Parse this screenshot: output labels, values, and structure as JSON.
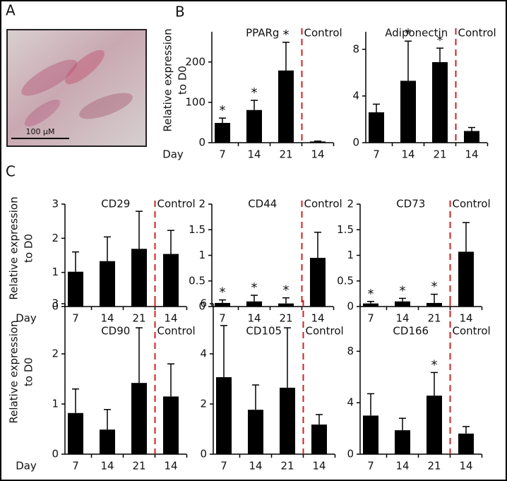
{
  "panel_labels": [
    "A",
    "B",
    "C"
  ],
  "image": {
    "scale_bar_label": "100 μM"
  },
  "chart_data": [
    {
      "type": "bar",
      "title": "PPARg",
      "annotation": "Control",
      "xlabel": "Day",
      "ylabel": [
        "Relative expression",
        "to D0"
      ],
      "categories": [
        "7",
        "14",
        "21",
        "14"
      ],
      "values": [
        49,
        81,
        179,
        3
      ],
      "errors": [
        12,
        24,
        70,
        1
      ],
      "significance": [
        "*",
        "*",
        "*",
        null
      ],
      "color": "#000000",
      "divider_color": "#cc2222",
      "ylim": [
        0,
        275
      ],
      "yticks": [
        0,
        100,
        200
      ]
    },
    {
      "type": "bar",
      "title": "Adiponectin",
      "annotation": "Control",
      "categories": [
        "7",
        "14",
        "21",
        "14"
      ],
      "values": [
        2.6,
        5.3,
        6.9,
        1.0
      ],
      "errors": [
        0.7,
        3.4,
        1.2,
        0.3
      ],
      "significance": [
        null,
        "*",
        "*",
        null
      ],
      "color": "#000000",
      "divider_color": "#cc2222",
      "ylim": [
        0,
        9.5
      ],
      "yticks": [
        0,
        4,
        8
      ]
    },
    {
      "type": "bar",
      "title": "CD29",
      "annotation": "Control",
      "xlabel": "Day",
      "ylabel": [
        "Relative expression",
        "to D0"
      ],
      "categories": [
        "7",
        "14",
        "21",
        "14"
      ],
      "values": [
        1.02,
        1.33,
        1.69,
        1.54
      ],
      "errors": [
        0.58,
        0.71,
        1.1,
        0.69
      ],
      "color": "#000000",
      "divider_color": "#cc2222",
      "ylim": [
        0,
        3
      ],
      "yticks": [
        0,
        1,
        2,
        3
      ]
    },
    {
      "type": "bar",
      "title": "CD44",
      "annotation": "Control",
      "categories": [
        "7",
        "14",
        "21",
        "14"
      ],
      "values": [
        0.07,
        0.1,
        0.06,
        0.95
      ],
      "errors": [
        0.06,
        0.12,
        0.11,
        0.5
      ],
      "significance": [
        "*",
        "*",
        "*",
        null
      ],
      "color": "#000000",
      "divider_color": "#cc2222",
      "ylim": [
        0,
        2
      ],
      "yticks": [
        0,
        0.5,
        1,
        1.5,
        2
      ]
    },
    {
      "type": "bar",
      "title": "CD73",
      "annotation": "Control",
      "categories": [
        "7",
        "14",
        "21",
        "14"
      ],
      "values": [
        0.06,
        0.1,
        0.07,
        1.07
      ],
      "errors": [
        0.04,
        0.06,
        0.17,
        0.57
      ],
      "significance": [
        "*",
        "*",
        "*",
        null
      ],
      "color": "#000000",
      "divider_color": "#cc2222",
      "ylim": [
        0,
        2
      ],
      "yticks": [
        0,
        0.5,
        1,
        1.5,
        2
      ]
    },
    {
      "type": "bar",
      "title": "CD90",
      "annotation": "Control",
      "xlabel": "Day",
      "ylabel": [
        "Relative expression",
        "to D0"
      ],
      "categories": [
        "7",
        "14",
        "21",
        "14"
      ],
      "values": [
        0.82,
        0.49,
        1.42,
        1.15
      ],
      "errors": [
        0.48,
        0.4,
        1.1,
        0.65
      ],
      "color": "#000000",
      "divider_color": "#cc2222",
      "ylim": [
        0,
        3
      ],
      "yticks": [
        0,
        1,
        2,
        3
      ]
    },
    {
      "type": "bar",
      "title": "CD105",
      "annotation": "Control",
      "categories": [
        "7",
        "14",
        "21",
        "14"
      ],
      "values": [
        3.07,
        1.77,
        2.65,
        1.18
      ],
      "errors": [
        2.06,
        0.99,
        2.39,
        0.4
      ],
      "color": "#000000",
      "divider_color": "#cc2222",
      "ylim": [
        0,
        6
      ],
      "yticks": [
        0,
        2,
        4,
        6
      ]
    },
    {
      "type": "bar",
      "title": "CD166",
      "annotation": "Control",
      "categories": [
        "7",
        "14",
        "21",
        "14"
      ],
      "values": [
        3.0,
        1.86,
        4.55,
        1.6
      ],
      "errors": [
        1.7,
        0.93,
        1.8,
        0.55
      ],
      "significance": [
        null,
        null,
        "*",
        null
      ],
      "color": "#000000",
      "divider_color": "#cc2222",
      "ylim": [
        0,
        11.7
      ],
      "yticks": [
        0,
        4,
        8
      ]
    }
  ]
}
